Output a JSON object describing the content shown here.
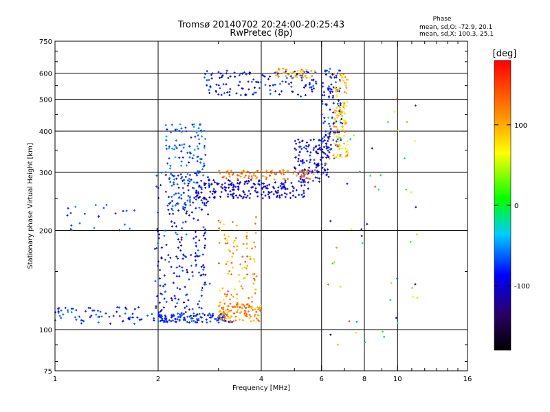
{
  "chart_data": {
    "type": "scatter",
    "title": "Tromsø 20140702 20:24:00-20:25:43",
    "subtitle": "RwPretec (8p)",
    "xlabel": "Frequency [MHz]",
    "ylabel": "Stationary phase Virtual Height [km]",
    "xscale": "log",
    "yscale": "log",
    "xlim": [
      1,
      16
    ],
    "ylim": [
      75,
      750
    ],
    "xticks": [
      1,
      2,
      4,
      6,
      8,
      10,
      16
    ],
    "xtick_labels": [
      "1",
      "2",
      "4",
      "6",
      "8",
      "10",
      "16"
    ],
    "yticks": [
      75,
      100,
      200,
      300,
      400,
      500,
      600,
      750
    ],
    "ytick_labels": [
      "75",
      "100",
      "200",
      "300",
      "400",
      "500",
      "600",
      "750"
    ],
    "xgrid": [
      2,
      4,
      6,
      8,
      10
    ],
    "ygrid": [
      100,
      200,
      300,
      400,
      500,
      600
    ],
    "grid": true,
    "stats": {
      "heading": "Phase",
      "line_o": "mean, sd,O: -72.9, 20.1",
      "line_x": "mean, sd,X: 100.3, 25.1"
    },
    "colorbar": {
      "label": "[deg]",
      "range": [
        -180,
        180
      ],
      "ticks": [
        100,
        0,
        -100
      ],
      "tick_labels": [
        "100",
        "0",
        "-100"
      ],
      "placement": "right",
      "colormap": "rainbow-black-to-red"
    },
    "clusters": [
      {
        "name": "low-frequency-E-trace",
        "n": 70,
        "x": [
          1.0,
          2.0
        ],
        "y": [
          104,
          117
        ],
        "phase": [
          -95,
          -55
        ],
        "seed": 11
      },
      {
        "name": "low-trace-isolated",
        "n": 22,
        "x": [
          1.0,
          1.75
        ],
        "y": [
          200,
          240
        ],
        "phase": [
          -95,
          -55
        ],
        "seed": 12
      },
      {
        "name": "spread-column-2MHz",
        "n": 240,
        "x": [
          1.95,
          2.85
        ],
        "y": [
          105,
          300
        ],
        "phase": [
          -125,
          -55
        ],
        "seed": 13
      },
      {
        "name": "spread-column-upper",
        "n": 140,
        "x": [
          2.1,
          2.75
        ],
        "y": [
          230,
          420
        ],
        "phase": [
          -85,
          -45
        ],
        "seed": 14
      },
      {
        "name": "E-layer-base",
        "n": 110,
        "x": [
          2.0,
          3.3
        ],
        "y": [
          105,
          112
        ],
        "phase": [
          -90,
          -60
        ],
        "seed": 15
      },
      {
        "name": "E-layer-orange",
        "n": 110,
        "x": [
          3.0,
          4.0
        ],
        "y": [
          106,
          120
        ],
        "phase": [
          80,
          150
        ],
        "seed": 16
      },
      {
        "name": "yellow-column",
        "n": 90,
        "x": [
          3.0,
          3.9
        ],
        "y": [
          120,
          220
        ],
        "phase": [
          70,
          150
        ],
        "seed": 17
      },
      {
        "name": "F-trace-blue",
        "n": 190,
        "x": [
          2.6,
          5.5
        ],
        "y": [
          250,
          285
        ],
        "phase": [
          -120,
          -80
        ],
        "seed": 18
      },
      {
        "name": "F-trace-rising",
        "n": 120,
        "x": [
          5.0,
          6.3
        ],
        "y": [
          280,
          380
        ],
        "phase": [
          -120,
          -70
        ],
        "seed": 19
      },
      {
        "name": "F-trace-orange-upper",
        "n": 90,
        "x": [
          3.0,
          5.8
        ],
        "y": [
          285,
          305
        ],
        "phase": [
          90,
          160
        ],
        "seed": 20
      },
      {
        "name": "F2-top-trace",
        "n": 130,
        "x": [
          2.7,
          5.8
        ],
        "y": [
          510,
          610
        ],
        "phase": [
          -110,
          -60
        ],
        "seed": 21
      },
      {
        "name": "F2-top-orange",
        "n": 40,
        "x": [
          4.4,
          5.8
        ],
        "y": [
          580,
          620
        ],
        "phase": [
          70,
          130
        ],
        "seed": 22
      },
      {
        "name": "cusp-blue",
        "n": 110,
        "x": [
          6.0,
          6.9
        ],
        "y": [
          330,
          620
        ],
        "phase": [
          -110,
          -60
        ],
        "seed": 23
      },
      {
        "name": "cusp-yellow-green",
        "n": 110,
        "x": [
          6.5,
          7.2
        ],
        "y": [
          330,
          600
        ],
        "phase": [
          50,
          120
        ],
        "seed": 24
      },
      {
        "name": "scatter-sparse",
        "n": 55,
        "x": [
          6.2,
          11.5
        ],
        "y": [
          85,
          520
        ],
        "phase": [
          -150,
          160
        ],
        "seed": 25
      }
    ]
  }
}
